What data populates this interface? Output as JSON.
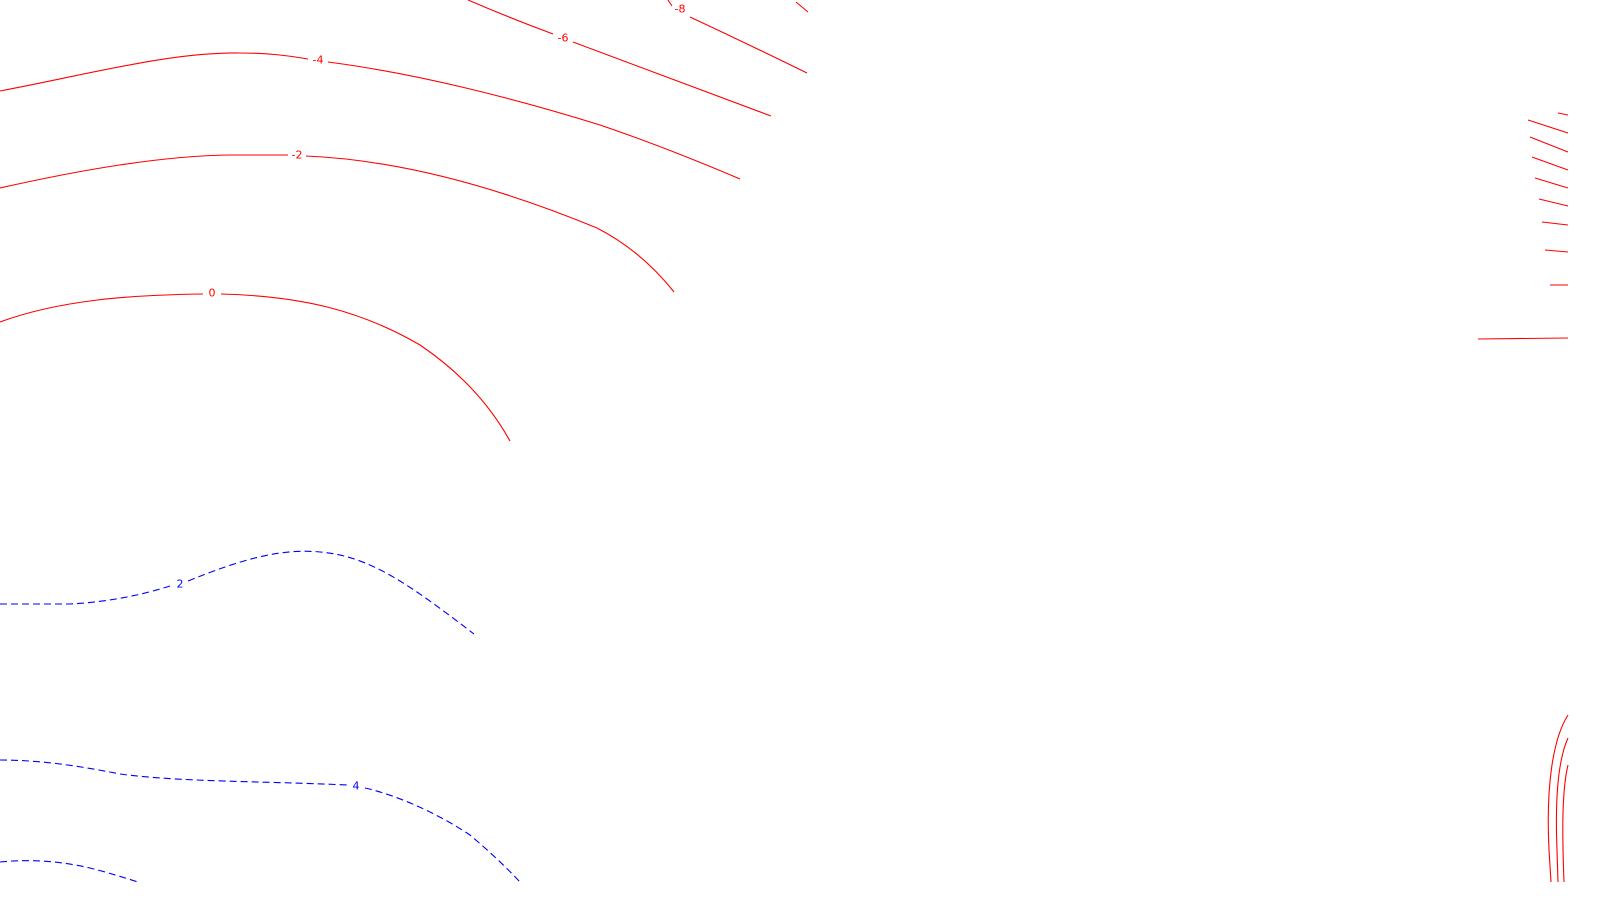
{
  "map": {
    "style": {
      "negative_color": "#ff0000",
      "positive_color": "#0000ff",
      "negative_line": "solid",
      "positive_line": "dashed",
      "background": "#ffffff"
    },
    "contour_labels": [
      {
        "id": "neg-8",
        "text": "-8",
        "sign": "negative"
      },
      {
        "id": "neg-6",
        "text": "-6",
        "sign": "negative"
      },
      {
        "id": "neg-4",
        "text": "-4",
        "sign": "negative"
      },
      {
        "id": "neg-2",
        "text": "-2",
        "sign": "negative"
      },
      {
        "id": "zero",
        "text": "0",
        "sign": "negative"
      },
      {
        "id": "pos-2",
        "text": "2",
        "sign": "positive"
      },
      {
        "id": "pos-4",
        "text": "4",
        "sign": "positive"
      }
    ]
  }
}
